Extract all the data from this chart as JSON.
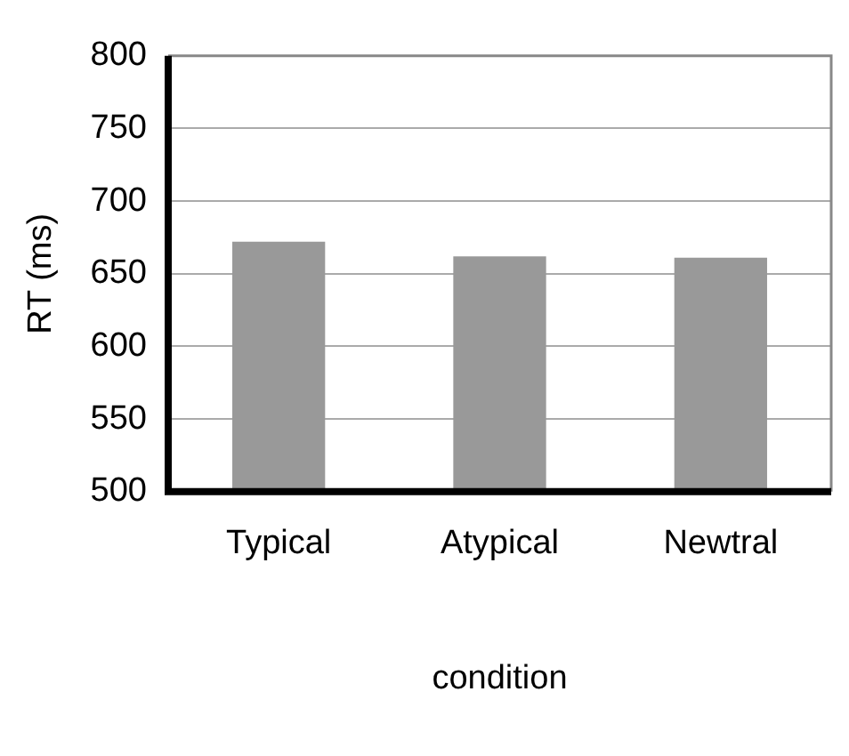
{
  "chart_data": {
    "type": "bar",
    "xlabel": "condition",
    "ylabel": "RT (ms)",
    "categories": [
      "Typical",
      "Atypical",
      "Newtral"
    ],
    "values": [
      672,
      662,
      661
    ],
    "color": "#999999",
    "ylim": [
      500,
      800
    ],
    "yticks": [
      500,
      550,
      600,
      650,
      700,
      750,
      800
    ],
    "grid": "y"
  }
}
